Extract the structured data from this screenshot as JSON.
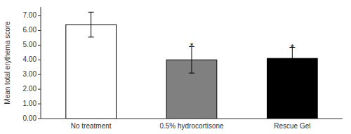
{
  "chart_data": {
    "type": "bar",
    "categories": [
      "No treatment",
      "0.5% hydrocortisone",
      "Rescue Gel"
    ],
    "values": [
      6.4,
      4.0,
      4.1
    ],
    "errors": [
      0.85,
      0.9,
      0.75
    ],
    "colors": [
      "#ffffff",
      "#808080",
      "#000000"
    ],
    "ylabel": "Mean total erythema score",
    "ylim": [
      0,
      7.6
    ],
    "yticks": [
      {
        "value": 0,
        "label": "0.00"
      },
      {
        "value": 1,
        "label": "1.00"
      },
      {
        "value": 2,
        "label": "2.00"
      },
      {
        "value": 3,
        "label": "3.00"
      },
      {
        "value": 4,
        "label": "4.00"
      },
      {
        "value": 5,
        "label": "5.00"
      },
      {
        "value": 6,
        "label": "6.00"
      },
      {
        "value": 7,
        "label": "7.00"
      }
    ],
    "annotations": [
      {
        "category": "0.5% hydrocortisone",
        "text": "*"
      },
      {
        "category": "Rescue Gel",
        "text": "*"
      }
    ],
    "grid": false
  }
}
